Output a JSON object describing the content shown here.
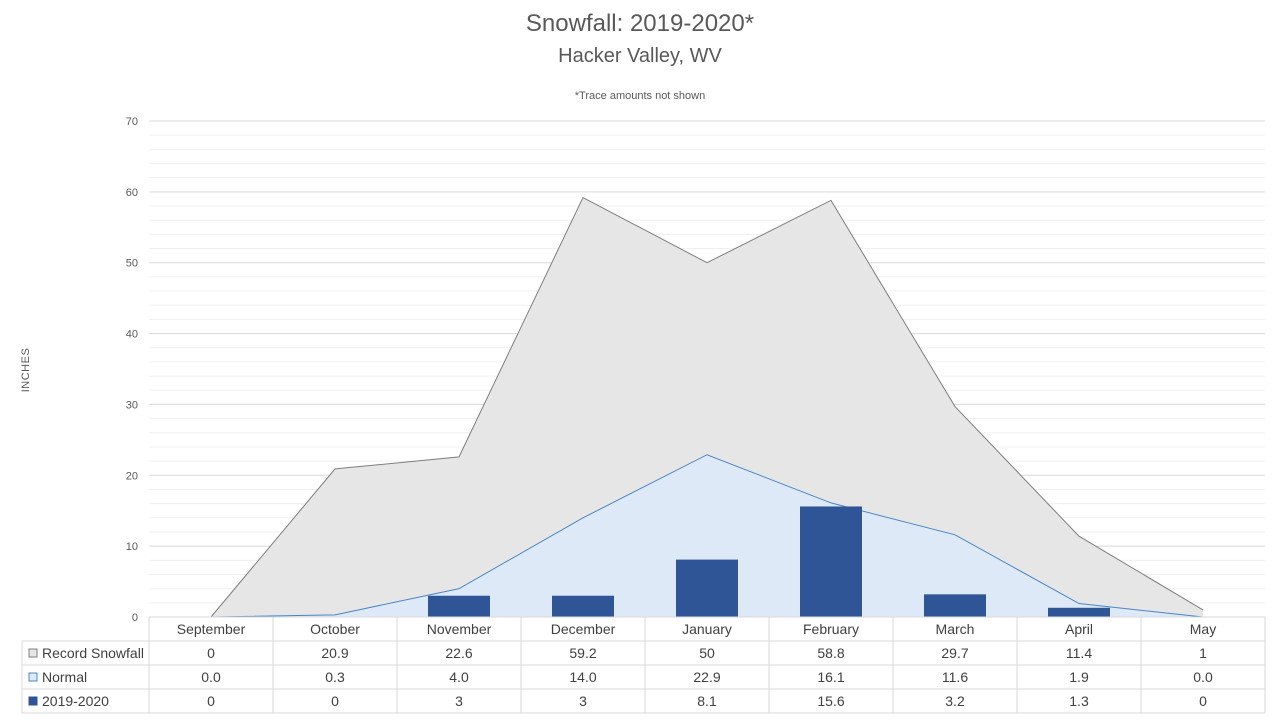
{
  "chart_data": {
    "type": "area",
    "title": "Snowfall: 2019-2020*",
    "subtitle": "Hacker Valley, WV",
    "annotation": "*Trace amounts not shown",
    "ylabel": "INCHES",
    "xlabel": "",
    "ylim": [
      0,
      70
    ],
    "yticks": [
      0,
      10,
      20,
      30,
      40,
      50,
      60,
      70
    ],
    "grid": true,
    "legend_placement": "data-table-left",
    "categories": [
      "September",
      "October",
      "November",
      "December",
      "January",
      "February",
      "March",
      "April",
      "May"
    ],
    "series": [
      {
        "name": "Record Snowfall",
        "kind": "area",
        "color": "#e6e6e6",
        "stroke": "#7f7f7f",
        "values": [
          0,
          20.9,
          22.6,
          59.2,
          50,
          58.8,
          29.7,
          11.4,
          1
        ],
        "labels": [
          "0",
          "20.9",
          "22.6",
          "59.2",
          "50",
          "58.8",
          "29.7",
          "11.4",
          "1"
        ]
      },
      {
        "name": "Normal",
        "kind": "area",
        "color": "#dde9f6",
        "stroke": "#4a86c8",
        "values": [
          0.0,
          0.3,
          4.0,
          14.0,
          22.9,
          16.1,
          11.6,
          1.9,
          0.0
        ],
        "labels": [
          "0.0",
          "0.3",
          "4.0",
          "14.0",
          "22.9",
          "16.1",
          "11.6",
          "1.9",
          "0.0"
        ]
      },
      {
        "name": "2019-2020",
        "kind": "bar",
        "color": "#2f5597",
        "values": [
          0,
          0,
          3,
          3,
          8.1,
          15.6,
          3.2,
          1.3,
          0
        ],
        "labels": [
          "0",
          "0",
          "3",
          "3",
          "8.1",
          "15.6",
          "3.2",
          "1.3",
          "0"
        ]
      }
    ]
  }
}
